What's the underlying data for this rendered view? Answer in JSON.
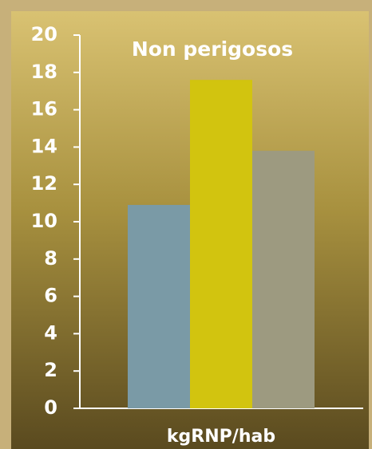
{
  "chart_data": {
    "type": "bar",
    "title": "Non perigosos",
    "x_label": "kgRNP/hab",
    "categories": [
      null,
      null,
      null
    ],
    "values": [
      10.9,
      17.6,
      13.8
    ],
    "colors": [
      "#7a9aa6",
      "#d2c40f",
      "#9d9a80"
    ],
    "ylim": [
      0,
      20
    ],
    "yticks": [
      0,
      2,
      4,
      6,
      8,
      10,
      12,
      14,
      16,
      18,
      20
    ]
  }
}
